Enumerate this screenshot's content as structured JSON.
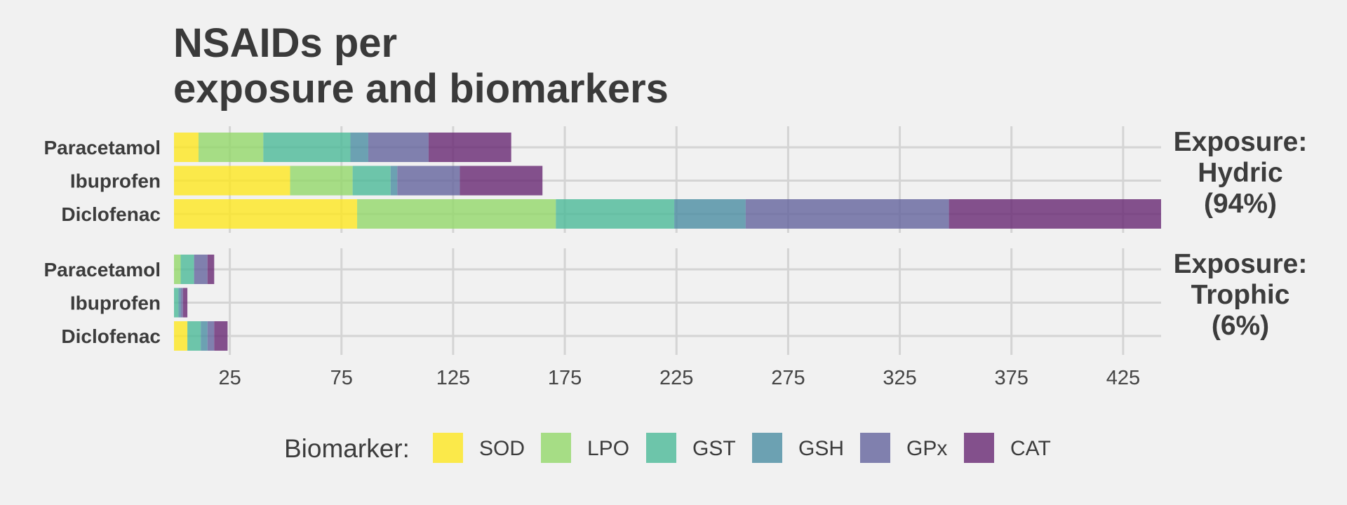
{
  "chart_data": {
    "type": "bar",
    "orientation": "horizontal",
    "stacked": true,
    "title": [
      "NSAIDs per",
      "exposure and biomarkers"
    ],
    "xlim": [
      0,
      442
    ],
    "x_ticks": [
      25,
      75,
      125,
      175,
      225,
      275,
      325,
      375,
      425
    ],
    "grid": true,
    "legend_position": "bottom",
    "legend_title": "Biomarker:",
    "biomarkers": [
      "SOD",
      "LPO",
      "GST",
      "GSH",
      "GPx",
      "CAT"
    ],
    "colors": {
      "SOD": "#fde725",
      "LPO": "#95d86c",
      "GST": "#4fbb9a",
      "GSH": "#4e8fa3",
      "GPx": "#66679f",
      "CAT": "#6a2c75"
    },
    "panels": [
      {
        "label": [
          "Exposure:",
          "Hydric",
          "(94%)"
        ],
        "bars": [
          {
            "drug": "Paracetamol",
            "values": {
              "SOD": 11,
              "LPO": 29,
              "GST": 39,
              "GSH": 8,
              "GPx": 27,
              "CAT": 37
            }
          },
          {
            "drug": "Ibuprofen",
            "values": {
              "SOD": 52,
              "LPO": 28,
              "GST": 17,
              "GSH": 3,
              "GPx": 28,
              "CAT": 37
            }
          },
          {
            "drug": "Diclofenac",
            "values": {
              "SOD": 82,
              "LPO": 89,
              "GST": 53,
              "GSH": 32,
              "GPx": 91,
              "CAT": 95
            }
          }
        ]
      },
      {
        "label": [
          "Exposure:",
          "Trophic",
          "(6%)"
        ],
        "bars": [
          {
            "drug": "Paracetamol",
            "values": {
              "SOD": 0,
              "LPO": 3,
              "GST": 6,
              "GSH": 0,
              "GPx": 6,
              "CAT": 3
            }
          },
          {
            "drug": "Ibuprofen",
            "values": {
              "SOD": 0,
              "LPO": 0,
              "GST": 2,
              "GSH": 1,
              "GPx": 1,
              "CAT": 2
            }
          },
          {
            "drug": "Diclofenac",
            "values": {
              "SOD": 6,
              "LPO": 0,
              "GST": 6,
              "GSH": 3,
              "GPx": 3,
              "CAT": 6
            }
          }
        ]
      }
    ]
  }
}
